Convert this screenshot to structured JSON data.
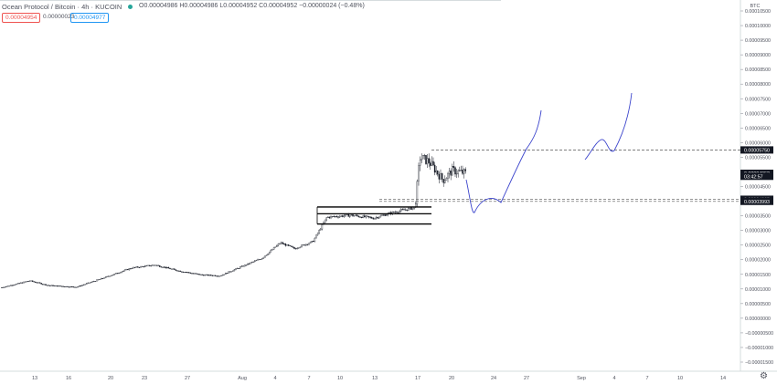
{
  "header": {
    "symbol_title": "Ocean Protocol / Bitcoin · 4h · KUCOIN",
    "ohlc_text": "O0.00004986 H0.00004986 L0.00004952 C0.00004952 −0.00000024 (−0.48%)",
    "bid": "0.00004954",
    "spread": "0.00000023",
    "ask": "0.00004977"
  },
  "colors": {
    "up": "#26a69a",
    "down": "#ef5350",
    "candles": "#131722",
    "drawing": "#3b44cc",
    "highlight_label_bg": "#131722"
  },
  "icons": {
    "settings": "gear-icon"
  },
  "chart_data": {
    "type": "candlestick",
    "currency_label": "BTC",
    "y_axis": {
      "ylim": [
        -1.6e-06,
        1.06e-05
      ],
      "tick_labels": [
        "0.00010500",
        "0.00010000",
        "0.00009500",
        "0.00009000",
        "0.00008500",
        "0.00008000",
        "0.00007500",
        "0.00007000",
        "0.00006500",
        "0.00006000",
        "0.00005500",
        "0.00005000",
        "0.00004500",
        "0.00004000",
        "0.00003500",
        "0.00003000",
        "0.00002500",
        "0.00002000",
        "0.00001500",
        "0.00001000",
        "0.00000500",
        "0.00000000",
        "−0.00000500",
        "−0.00001000",
        "−0.00001500"
      ],
      "tick_values": [
        0.000105,
        0.0001,
        9.5e-05,
        9e-05,
        8.5e-05,
        8e-05,
        7.5e-05,
        7e-05,
        6.5e-05,
        6e-05,
        5.5e-05,
        5e-05,
        4.5e-05,
        4e-05,
        3.5e-05,
        3e-05,
        2.5e-05,
        2e-05,
        1.5e-05,
        1e-05,
        5e-06,
        0,
        -5e-06,
        -1e-05,
        -1.5e-05
      ]
    },
    "x_axis": {
      "tick_labels": [
        "13",
        "16",
        "20",
        "23",
        "27",
        "Aug",
        "4",
        "7",
        "10",
        "13",
        "17",
        "20",
        "24",
        "27",
        "Sep",
        "4",
        "7",
        "10",
        "14"
      ]
    },
    "price_labels": [
      {
        "text": "0.00005750",
        "value": 5.75e-05
      },
      {
        "text": "0.00004952",
        "value": 4.952e-05
      },
      {
        "text": "03:42:57",
        "value": 4.85e-05
      },
      {
        "text": "0.00004065",
        "value": 4.065e-05
      },
      {
        "text": "0.00003993",
        "value": 3.993e-05
      }
    ],
    "horizontal_levels": [
      5.75e-05,
      4.065e-05,
      3.993e-05
    ],
    "range_box": {
      "top": 3.8e-05,
      "middle": 3.57e-05,
      "bottom": 3.22e-05
    },
    "ohlc_anchors": [
      {
        "t": 0,
        "price": 1.05e-05
      },
      {
        "t": 0.06,
        "price": 1.28e-05
      },
      {
        "t": 0.1,
        "price": 1.12e-05
      },
      {
        "t": 0.16,
        "price": 1.06e-05
      },
      {
        "t": 0.22,
        "price": 1.38e-05
      },
      {
        "t": 0.28,
        "price": 1.72e-05
      },
      {
        "t": 0.33,
        "price": 1.82e-05
      },
      {
        "t": 0.38,
        "price": 1.62e-05
      },
      {
        "t": 0.43,
        "price": 1.48e-05
      },
      {
        "t": 0.47,
        "price": 1.45e-05
      },
      {
        "t": 0.51,
        "price": 1.72e-05
      },
      {
        "t": 0.56,
        "price": 2.05e-05
      },
      {
        "t": 0.6,
        "price": 2.58e-05
      },
      {
        "t": 0.63,
        "price": 2.38e-05
      },
      {
        "t": 0.67,
        "price": 2.62e-05
      },
      {
        "t": 0.7,
        "price": 3.45e-05
      },
      {
        "t": 0.75,
        "price": 3.52e-05
      },
      {
        "t": 0.8,
        "price": 3.42e-05
      },
      {
        "t": 0.85,
        "price": 3.65e-05
      },
      {
        "t": 0.89,
        "price": 3.78e-05
      },
      {
        "t": 0.9,
        "price": 5.5e-05
      },
      {
        "t": 0.92,
        "price": 5.35e-05
      },
      {
        "t": 0.95,
        "price": 4.72e-05
      },
      {
        "t": 0.97,
        "price": 5.05e-05
      },
      {
        "t": 1,
        "price": 4.95e-05
      }
    ]
  }
}
